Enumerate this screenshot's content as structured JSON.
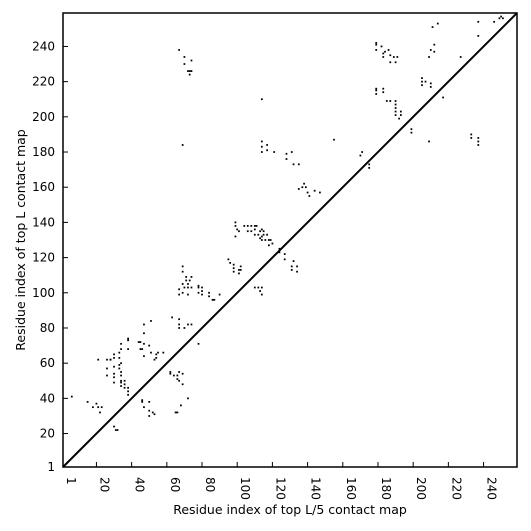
{
  "chart_data": {
    "type": "scatter",
    "title": "",
    "xlabel": "Residue index of top L/5 contact map",
    "ylabel": "Residue index of top L contact map",
    "xlim": [
      1,
      259
    ],
    "ylim": [
      1,
      259
    ],
    "x_ticks": [
      1,
      20,
      40,
      60,
      80,
      100,
      120,
      140,
      160,
      180,
      200,
      220,
      240
    ],
    "x_tick_labels": [
      "1",
      "20",
      "40",
      "60",
      "80",
      "100",
      "120",
      "140",
      "160",
      "180",
      "200",
      "220",
      "240"
    ],
    "y_ticks": [
      1,
      20,
      40,
      60,
      80,
      100,
      120,
      140,
      160,
      180,
      200,
      220,
      240
    ],
    "y_tick_labels": [
      "1",
      "20",
      "40",
      "60",
      "80",
      "100",
      "120",
      "140",
      "160",
      "180",
      "200",
      "220",
      "240"
    ],
    "grid": false,
    "legend": "none",
    "diagonal": {
      "from": [
        1,
        1
      ],
      "to": [
        259,
        259
      ],
      "color": "#000000"
    },
    "marker_color": "#000000",
    "series": [
      {
        "points": [
          [
            6,
            41
          ],
          [
            15,
            38
          ],
          [
            18,
            35
          ],
          [
            20,
            37
          ],
          [
            21,
            35
          ],
          [
            21,
            62
          ],
          [
            22,
            32
          ],
          [
            23,
            35
          ],
          [
            26,
            57
          ],
          [
            26,
            53
          ],
          [
            26,
            62
          ],
          [
            28,
            62
          ],
          [
            28,
            62
          ],
          [
            30,
            49
          ],
          [
            30,
            52
          ],
          [
            30,
            54
          ],
          [
            30,
            58
          ],
          [
            30,
            63
          ],
          [
            30,
            65
          ],
          [
            30,
            24
          ],
          [
            31,
            22
          ],
          [
            32,
            22
          ],
          [
            33,
            57
          ],
          [
            33,
            59
          ],
          [
            33,
            63
          ],
          [
            33,
            66
          ],
          [
            34,
            47
          ],
          [
            34,
            49
          ],
          [
            34,
            50
          ],
          [
            34,
            53
          ],
          [
            34,
            55
          ],
          [
            34,
            60
          ],
          [
            34,
            68
          ],
          [
            34,
            71
          ],
          [
            36,
            46
          ],
          [
            36,
            48
          ],
          [
            36,
            50
          ],
          [
            38,
            42
          ],
          [
            38,
            44
          ],
          [
            38,
            46
          ],
          [
            38,
            68
          ],
          [
            38,
            73
          ],
          [
            38,
            74
          ],
          [
            44,
            72
          ],
          [
            45,
            68
          ],
          [
            45,
            72
          ],
          [
            46,
            68
          ],
          [
            46,
            39
          ],
          [
            46,
            38
          ],
          [
            47,
            35
          ],
          [
            47,
            64
          ],
          [
            47,
            71
          ],
          [
            47,
            77
          ],
          [
            47,
            82
          ],
          [
            50,
            30
          ],
          [
            50,
            33
          ],
          [
            50,
            38
          ],
          [
            50,
            70
          ],
          [
            51,
            84
          ],
          [
            51,
            66
          ],
          [
            52,
            32
          ],
          [
            53,
            31
          ],
          [
            53,
            62
          ],
          [
            54,
            63
          ],
          [
            54,
            65
          ],
          [
            55,
            66
          ],
          [
            58,
            66
          ],
          [
            62,
            54
          ],
          [
            62,
            55
          ],
          [
            63,
            86
          ],
          [
            64,
            53
          ],
          [
            65,
            32
          ],
          [
            66,
            32
          ],
          [
            66,
            51
          ],
          [
            66,
            53
          ],
          [
            67,
            50
          ],
          [
            67,
            55
          ],
          [
            67,
            85
          ],
          [
            67,
            80
          ],
          [
            67,
            82
          ],
          [
            67,
            99
          ],
          [
            67,
            102
          ],
          [
            68,
            36
          ],
          [
            69,
            48
          ],
          [
            69,
            54
          ],
          [
            69,
            100
          ],
          [
            69,
            105
          ],
          [
            69,
            112
          ],
          [
            69,
            115
          ],
          [
            69,
            184
          ],
          [
            70,
            234
          ],
          [
            70,
            230
          ],
          [
            70,
            80
          ],
          [
            70,
            103
          ],
          [
            71,
            107
          ],
          [
            71,
            109
          ],
          [
            72,
            40
          ],
          [
            72,
            82
          ],
          [
            72,
            99
          ],
          [
            72,
            103
          ],
          [
            72,
            105
          ],
          [
            72,
            226
          ],
          [
            73,
            224
          ],
          [
            73,
            226
          ],
          [
            73,
            107
          ],
          [
            74,
            226
          ],
          [
            74,
            109
          ],
          [
            74,
            103
          ],
          [
            74,
            82
          ],
          [
            74,
            232
          ],
          [
            67,
            238
          ],
          [
            78,
            71
          ],
          [
            78,
            100
          ],
          [
            78,
            103
          ],
          [
            78,
            104
          ],
          [
            80,
            99
          ],
          [
            80,
            101
          ],
          [
            80,
            103
          ],
          [
            84,
            100
          ],
          [
            84,
            98
          ],
          [
            86,
            96
          ],
          [
            87,
            96
          ],
          [
            90,
            99
          ],
          [
            95,
            119
          ],
          [
            96,
            117
          ],
          [
            98,
            112
          ],
          [
            98,
            114
          ],
          [
            98,
            116
          ],
          [
            99,
            132
          ],
          [
            99,
            138
          ],
          [
            99,
            140
          ],
          [
            100,
            136
          ],
          [
            101,
            135
          ],
          [
            101,
            111
          ],
          [
            101,
            113
          ],
          [
            102,
            113
          ],
          [
            102,
            115
          ],
          [
            104,
            138
          ],
          [
            106,
            135
          ],
          [
            106,
            138
          ],
          [
            108,
            138
          ],
          [
            108,
            135
          ],
          [
            110,
            103
          ],
          [
            110,
            136
          ],
          [
            110,
            133
          ],
          [
            110,
            138
          ],
          [
            111,
            138
          ],
          [
            112,
            103
          ],
          [
            112,
            133
          ],
          [
            113,
            135
          ],
          [
            113,
            131
          ],
          [
            113,
            101
          ],
          [
            114,
            99
          ],
          [
            114,
            103
          ],
          [
            114,
            130
          ],
          [
            114,
            132
          ],
          [
            114,
            136
          ],
          [
            114,
            180
          ],
          [
            114,
            183
          ],
          [
            114,
            186
          ],
          [
            114,
            210
          ],
          [
            115,
            133
          ],
          [
            115,
            135
          ],
          [
            116,
            130
          ],
          [
            117,
            181
          ],
          [
            117,
            133
          ],
          [
            117,
            184
          ],
          [
            118,
            130
          ],
          [
            118,
            127
          ],
          [
            119,
            130
          ],
          [
            120,
            128
          ],
          [
            121,
            180
          ],
          [
            124,
            125
          ],
          [
            124,
            123
          ],
          [
            127,
            119
          ],
          [
            127,
            122
          ],
          [
            128,
            176
          ],
          [
            128,
            179
          ],
          [
            131,
            113
          ],
          [
            131,
            115
          ],
          [
            131,
            180
          ],
          [
            132,
            118
          ],
          [
            132,
            173
          ],
          [
            134,
            112
          ],
          [
            134,
            115
          ],
          [
            135,
            159
          ],
          [
            135,
            173
          ],
          [
            137,
            160
          ],
          [
            138,
            162
          ],
          [
            139,
            160
          ],
          [
            140,
            157
          ],
          [
            141,
            155
          ],
          [
            144,
            158
          ],
          [
            147,
            157
          ],
          [
            155,
            187
          ],
          [
            170,
            178
          ],
          [
            171,
            180
          ],
          [
            175,
            171
          ],
          [
            175,
            173
          ],
          [
            179,
            216
          ],
          [
            179,
            213
          ],
          [
            179,
            215
          ],
          [
            179,
            238
          ],
          [
            179,
            241
          ],
          [
            179,
            242
          ],
          [
            182,
            240
          ],
          [
            183,
            214
          ],
          [
            183,
            216
          ],
          [
            183,
            234
          ],
          [
            183,
            236
          ],
          [
            184,
            237
          ],
          [
            185,
            209
          ],
          [
            186,
            238
          ],
          [
            187,
            231
          ],
          [
            187,
            235
          ],
          [
            187,
            209
          ],
          [
            189,
            234
          ],
          [
            190,
            201
          ],
          [
            190,
            203
          ],
          [
            190,
            205
          ],
          [
            190,
            207
          ],
          [
            190,
            209
          ],
          [
            190,
            231
          ],
          [
            191,
            234
          ],
          [
            192,
            199
          ],
          [
            193,
            201
          ],
          [
            193,
            203
          ],
          [
            199,
            191
          ],
          [
            199,
            193
          ],
          [
            205,
            218
          ],
          [
            205,
            220
          ],
          [
            205,
            222
          ],
          [
            207,
            220
          ],
          [
            209,
            234
          ],
          [
            209,
            186
          ],
          [
            210,
            219
          ],
          [
            210,
            217
          ],
          [
            210,
            238
          ],
          [
            211,
            251
          ],
          [
            212,
            237
          ],
          [
            212,
            241
          ],
          [
            214,
            253
          ],
          [
            217,
            211
          ],
          [
            227,
            234
          ],
          [
            233,
            190
          ],
          [
            233,
            188
          ],
          [
            237,
            186
          ],
          [
            237,
            188
          ],
          [
            237,
            184
          ],
          [
            237,
            254
          ],
          [
            237,
            246
          ],
          [
            246,
            254
          ],
          [
            249,
            256
          ],
          [
            250,
            257
          ],
          [
            251,
            256
          ]
        ]
      }
    ]
  }
}
